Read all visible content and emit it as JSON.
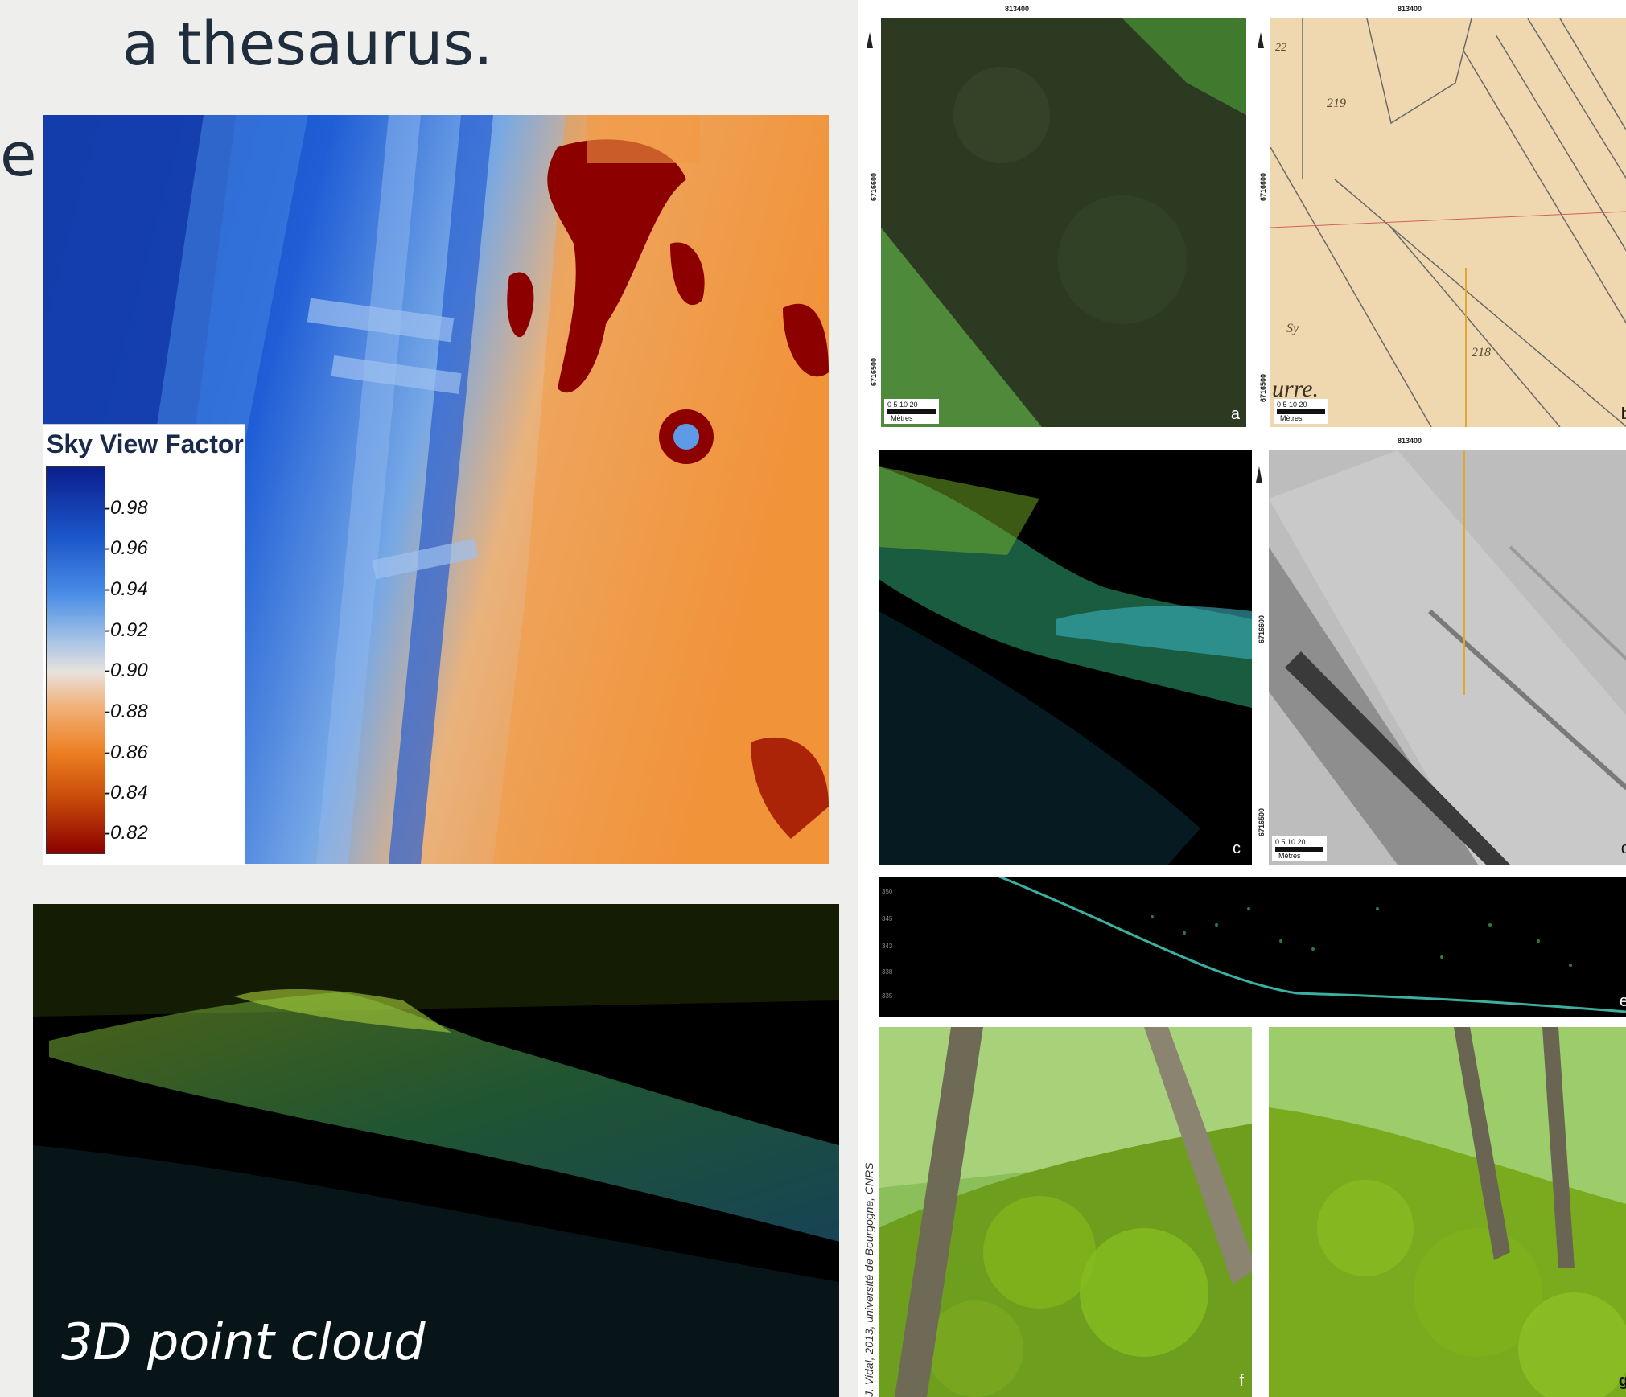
{
  "slide": {
    "title": "a thesaurus.",
    "edge_fragment": "e"
  },
  "svf_map": {
    "legend_title": "Sky View Factor",
    "legend_ticks": [
      "0.98",
      "0.96",
      "0.94",
      "0.92",
      "0.90",
      "0.88",
      "0.86",
      "0.84",
      "0.82"
    ],
    "colors": {
      "high": "#0c1f8e",
      "mid": "#e7e2dc",
      "low": "#8c0000",
      "orange": "#ec7e21"
    }
  },
  "pointcloud": {
    "caption": "3D point cloud"
  },
  "figure": {
    "coord_x": "813400",
    "coord_y_upper": "6716600",
    "coord_y_lower": "6716500",
    "north": "N",
    "scale_numbers": "0  5  10     20",
    "scale_unit": "Mètres",
    "profile_ticks": [
      "350",
      "345",
      "343",
      "338",
      "335"
    ],
    "panels": [
      "a",
      "b",
      "c",
      "d",
      "e",
      "f",
      "g"
    ],
    "cadastre_labels": [
      "219",
      "218",
      "22",
      "Sy",
      "urre."
    ],
    "credit": "J. Vidal, 2013, université de Bourgogne, CNRS"
  }
}
